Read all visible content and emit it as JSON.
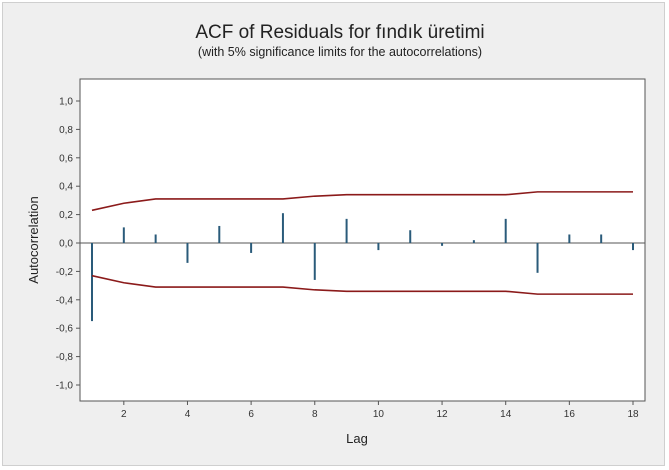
{
  "chart_data": {
    "type": "bar",
    "title": "ACF of Residuals for fındık üretimi",
    "subtitle": "(with 5% significance limits for the autocorrelations)",
    "xlabel": "Lag",
    "ylabel": "Autocorrelation",
    "xlim": [
      1,
      18
    ],
    "ylim": [
      -1.0,
      1.0
    ],
    "x_ticks": [
      "2",
      "4",
      "6",
      "8",
      "10",
      "12",
      "14",
      "16",
      "18"
    ],
    "y_ticks": [
      "1,0",
      "0,8",
      "0,6",
      "0,4",
      "0,2",
      "0,0",
      "-0,2",
      "-0,4",
      "-0,6",
      "-0,8",
      "-1,0"
    ],
    "lags": [
      1,
      2,
      3,
      4,
      5,
      6,
      7,
      8,
      9,
      10,
      11,
      12,
      13,
      14,
      15,
      16,
      17,
      18
    ],
    "values": [
      -0.55,
      0.11,
      0.06,
      -0.14,
      0.12,
      -0.07,
      0.21,
      -0.26,
      0.17,
      -0.05,
      0.09,
      -0.02,
      0.02,
      0.17,
      -0.21,
      0.06,
      0.06,
      -0.05
    ],
    "significance_limits": [
      0.23,
      0.28,
      0.31,
      0.31,
      0.31,
      0.31,
      0.31,
      0.33,
      0.34,
      0.34,
      0.34,
      0.34,
      0.34,
      0.34,
      0.36,
      0.36,
      0.36,
      0.36
    ],
    "colors": {
      "bars": "#2a5b7a",
      "limits": "#8b1a1a",
      "zero_line": "#555555",
      "plot_bg": "#ffffff",
      "frame_bg": "#efefef"
    },
    "grid": false
  }
}
